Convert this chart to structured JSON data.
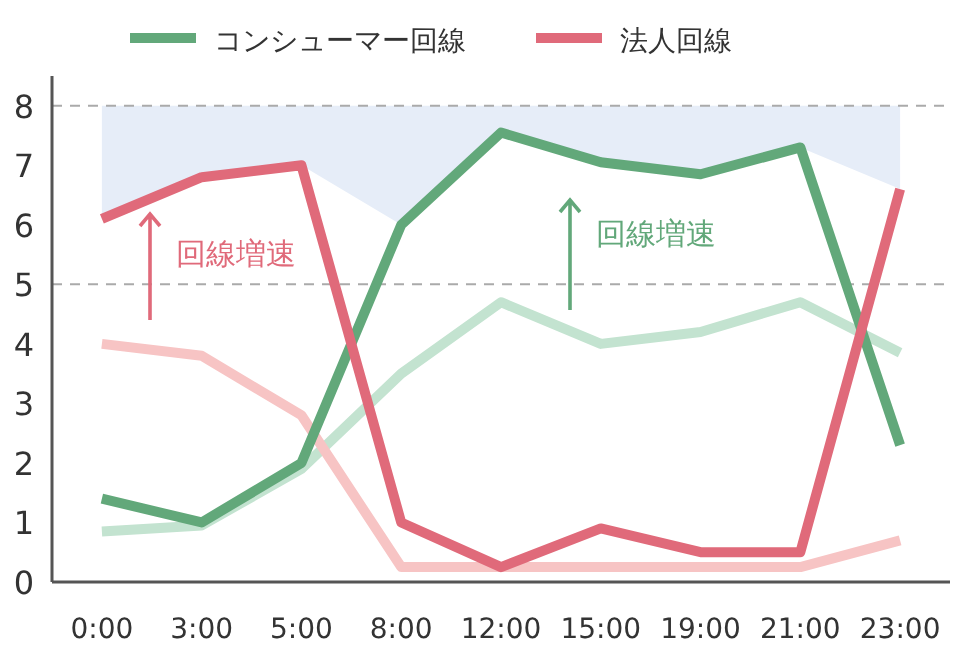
{
  "chart_data": {
    "type": "line",
    "categories": [
      "0:00",
      "3:00",
      "5:00",
      "8:00",
      "12:00",
      "15:00",
      "19:00",
      "21:00",
      "23:00"
    ],
    "series": [
      {
        "type": "area",
        "color": "#e6edf8",
        "values": [
          8,
          8,
          8,
          8,
          8,
          8,
          8,
          8,
          8
        ]
      },
      {
        "color": "#c3e3d0",
        "values": [
          0.85,
          0.95,
          1.9,
          3.5,
          4.7,
          4.0,
          4.2,
          4.7,
          3.85
        ]
      },
      {
        "color": "#f7c4c4",
        "values": [
          4.0,
          3.8,
          2.8,
          0.25,
          0.25,
          0.25,
          0.25,
          0.25,
          0.7
        ]
      },
      {
        "name": "コンシューマー回線",
        "color": "#62a87a",
        "values": [
          1.4,
          1.0,
          2.0,
          6.0,
          7.55,
          7.05,
          6.85,
          7.3,
          2.3
        ]
      },
      {
        "name": "法人回線",
        "color": "#e06a7a",
        "values": [
          6.1,
          6.8,
          7.0,
          1.0,
          0.25,
          0.9,
          0.5,
          0.5,
          6.6
        ]
      }
    ],
    "ylim": [
      0,
      8.5
    ],
    "yticks": [
      0,
      1,
      2,
      3,
      4,
      5,
      6,
      7,
      8
    ],
    "ref_lines": [
      {
        "axis": "y",
        "value": 8,
        "color": "#aaaaaa",
        "line_style": "dashed"
      },
      {
        "axis": "y",
        "value": 5,
        "color": "#aaaaaa",
        "line_style": "dashed"
      }
    ],
    "annotations": [
      "回線増速",
      "回線増速"
    ],
    "legend": "top",
    "grid": false,
    "line_style": "solid"
  }
}
